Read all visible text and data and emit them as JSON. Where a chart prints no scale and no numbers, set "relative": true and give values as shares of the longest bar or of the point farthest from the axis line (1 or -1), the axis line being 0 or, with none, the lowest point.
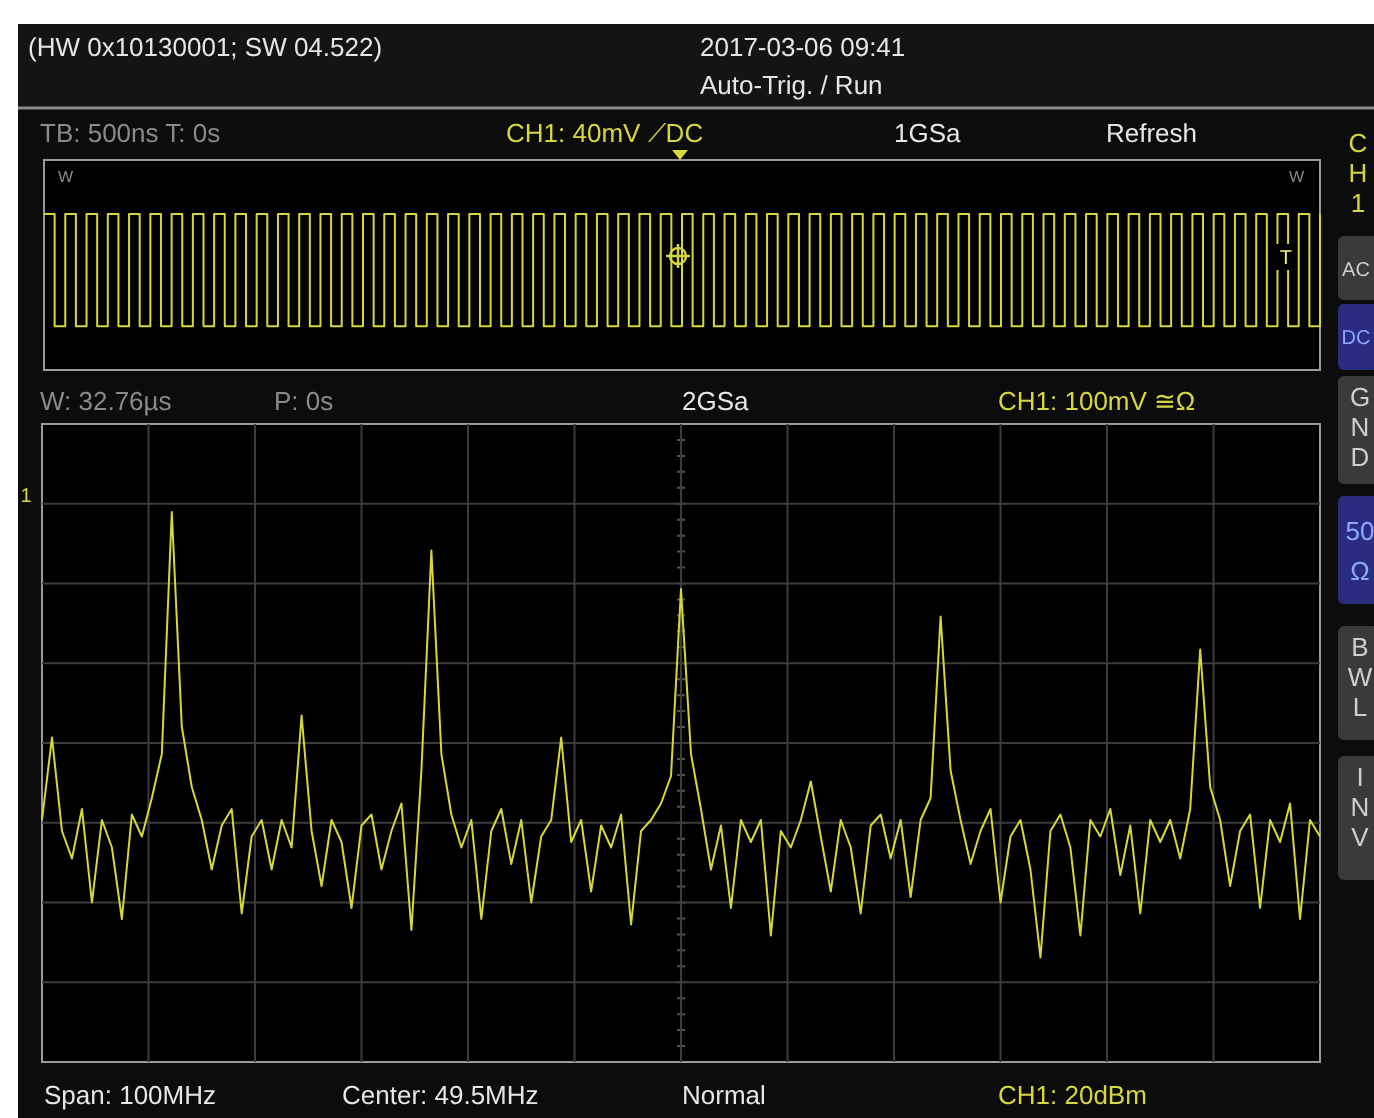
{
  "chart_data": [
    {
      "type": "step",
      "relative": true,
      "categories": [
        null,
        null,
        null,
        null,
        null,
        null,
        null,
        null,
        null,
        null,
        null,
        null,
        null,
        null,
        null,
        null,
        null,
        null,
        null,
        null,
        null,
        null,
        null,
        null,
        null,
        null,
        null,
        null,
        null,
        null,
        null,
        null,
        null,
        null,
        null,
        null,
        null,
        null,
        null,
        null,
        null,
        null,
        null,
        null,
        null,
        null,
        null,
        null,
        null,
        null,
        null,
        null,
        null,
        null,
        null,
        null,
        null,
        null,
        null,
        null,
        null,
        null,
        null,
        null,
        null,
        null,
        null,
        null,
        null,
        null,
        null,
        null,
        null,
        null,
        null,
        null,
        null,
        null,
        null,
        null,
        null,
        null,
        null,
        null,
        null,
        null,
        null,
        null,
        null,
        null,
        null,
        null,
        null,
        null,
        null,
        null,
        null,
        null,
        null,
        null,
        null,
        null,
        null,
        null,
        null,
        null,
        null,
        null,
        null,
        null,
        null,
        null,
        null,
        null,
        null,
        null,
        null,
        null,
        null,
        null,
        null
      ],
      "series": [
        {
          "color": "#d6d83a",
          "values": [
            1,
            0.28,
            1,
            0.28,
            1,
            0.28,
            1,
            0.28,
            1,
            0.28,
            1,
            0.28,
            1,
            0.28,
            1,
            0.28,
            1,
            0.28,
            1,
            0.28,
            1,
            0.28,
            1,
            0.28,
            1,
            0.28,
            1,
            0.28,
            1,
            0.28,
            1,
            0.28,
            1,
            0.28,
            1,
            0.28,
            1,
            0.28,
            1,
            0.28,
            1,
            0.28,
            1,
            0.28,
            1,
            0.28,
            1,
            0.28,
            1,
            0.28,
            1,
            0.28,
            1,
            0.28,
            1,
            0.28,
            1,
            0.28,
            1,
            0.28,
            1,
            0.28,
            1,
            0.28,
            1,
            0.28,
            1,
            0.28,
            1,
            0.28,
            1,
            0.28,
            1,
            0.28,
            1,
            0.28,
            1,
            0.28,
            1,
            0.28,
            1,
            0.28,
            1,
            0.28,
            1,
            0.28,
            1,
            0.28,
            1,
            0.28,
            1,
            0.28,
            1,
            0.28,
            1,
            0.28,
            1,
            0.28,
            1,
            0.28,
            1,
            0.28,
            1,
            0.28,
            1,
            0.28,
            1,
            0.28,
            1,
            0.28,
            1,
            0.28,
            1,
            0.28,
            1,
            0.28,
            1,
            0.28,
            1,
            0.28,
            1
          ]
        }
      ],
      "annotations": [
        "(HW 0x10130001; SW 04.522)",
        "2017-03-06 09:41",
        "Auto-Trig. / Run",
        "TB: 500ns  T: 0s",
        "CH1: 40mV ⟋DC",
        "1GSa",
        "Refresh",
        "CH1",
        "AC",
        "DC",
        "GND",
        "50Ω",
        "BWL",
        "INV",
        "W",
        "W",
        "T"
      ]
    },
    {
      "type": "line",
      "relative": true,
      "grid": true,
      "categories": [
        null,
        null,
        null,
        null,
        null,
        null,
        null,
        null,
        null,
        null,
        null,
        null,
        null,
        null,
        null,
        null,
        null,
        null,
        null,
        null,
        null,
        null,
        null,
        null,
        null,
        null,
        null,
        null,
        null,
        null,
        null,
        null,
        null,
        null,
        null,
        null,
        null,
        null,
        null,
        null,
        null,
        null,
        null,
        null,
        null,
        null,
        null,
        null,
        null,
        null,
        null,
        null,
        null,
        null,
        null,
        null,
        null,
        null,
        null,
        null,
        null,
        null,
        null,
        null,
        null,
        null,
        null,
        null,
        null,
        null,
        null,
        null,
        null,
        null,
        null,
        null,
        null,
        null,
        null,
        null,
        null,
        null,
        null,
        null,
        null,
        null,
        null,
        null,
        null,
        null,
        null,
        null,
        null,
        null,
        null,
        null,
        null,
        null,
        null,
        null,
        null,
        null,
        null,
        null,
        null,
        null,
        null,
        null,
        null,
        null,
        null,
        null,
        null,
        null,
        null,
        null,
        null,
        null,
        null,
        null,
        null,
        null,
        null,
        null,
        null,
        null,
        null,
        null,
        null
      ],
      "series": [
        {
          "color": "#d6d83a",
          "values": [
            0.44,
            0.59,
            0.42,
            0.37,
            0.46,
            0.29,
            0.44,
            0.39,
            0.26,
            0.45,
            0.41,
            0.48,
            0.56,
            1.0,
            0.61,
            0.5,
            0.44,
            0.35,
            0.43,
            0.46,
            0.27,
            0.41,
            0.44,
            0.35,
            0.44,
            0.39,
            0.63,
            0.42,
            0.32,
            0.44,
            0.4,
            0.28,
            0.43,
            0.45,
            0.35,
            0.42,
            0.47,
            0.24,
            0.53,
            0.93,
            0.56,
            0.45,
            0.39,
            0.44,
            0.26,
            0.42,
            0.46,
            0.36,
            0.44,
            0.29,
            0.41,
            0.44,
            0.59,
            0.4,
            0.44,
            0.31,
            0.43,
            0.39,
            0.45,
            0.25,
            0.42,
            0.44,
            0.47,
            0.52,
            0.86,
            0.56,
            0.46,
            0.35,
            0.43,
            0.28,
            0.44,
            0.4,
            0.44,
            0.23,
            0.42,
            0.39,
            0.44,
            0.51,
            0.41,
            0.31,
            0.44,
            0.39,
            0.27,
            0.43,
            0.45,
            0.37,
            0.44,
            0.3,
            0.44,
            0.48,
            0.81,
            0.53,
            0.44,
            0.36,
            0.42,
            0.46,
            0.29,
            0.41,
            0.44,
            0.35,
            0.19,
            0.42,
            0.45,
            0.39,
            0.23,
            0.44,
            0.41,
            0.46,
            0.34,
            0.43,
            0.27,
            0.44,
            0.4,
            0.44,
            0.37,
            0.46,
            0.75,
            0.5,
            0.44,
            0.32,
            0.42,
            0.45,
            0.28,
            0.44,
            0.4,
            0.47,
            0.26,
            0.44,
            0.41
          ]
        }
      ],
      "annotations": [
        "W: 32.76µs",
        "P: 0s",
        "2GSa",
        "CH1: 100mV ≅Ω",
        "Span: 100MHz",
        "Center: 49.5MHz",
        "Normal",
        "CH1: 20dBm",
        "1"
      ]
    }
  ]
}
